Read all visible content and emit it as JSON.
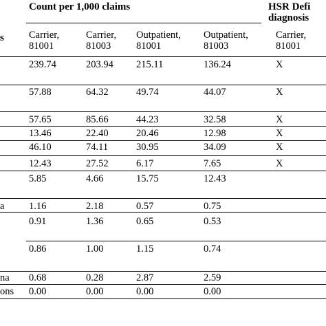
{
  "header": {
    "group_left": "Count per 1,000 claims",
    "group_right": "HSR Defi\ndiagnosis",
    "row_label_header": "s"
  },
  "columns": [
    "Carrier,\n81001",
    "Carrier,\n81003",
    "Outpatient,\n81001",
    "Outpatient,\n81003",
    "Carrier,\n81001"
  ],
  "rows": [
    {
      "label": "",
      "values": [
        "239.74",
        "203.94",
        "215.11",
        "136.24",
        "X"
      ]
    },
    {
      "label": "",
      "values": [
        "57.88",
        "64.32",
        "49.74",
        "44.07",
        "X"
      ]
    },
    {
      "label": "",
      "values": [
        "57.65",
        "85.66",
        "44.23",
        "32.58",
        "X"
      ]
    },
    {
      "label": "",
      "values": [
        "13.46",
        "22.40",
        "20.46",
        "12.98",
        "X"
      ]
    },
    {
      "label": "",
      "values": [
        "46.10",
        "74.11",
        "30.95",
        "34.09",
        "X"
      ]
    },
    {
      "label": "",
      "values": [
        "12.43",
        "27.52",
        "6.17",
        "7.65",
        "X"
      ]
    },
    {
      "label": "",
      "values": [
        "5.85",
        "4.66",
        "15.75",
        "12.43",
        ""
      ]
    },
    {
      "label": "a",
      "values": [
        "1.16",
        "2.18",
        "0.57",
        "0.75",
        ""
      ]
    },
    {
      "label": "",
      "values": [
        "0.91",
        "1.36",
        "0.65",
        "0.53",
        ""
      ]
    },
    {
      "label": "",
      "values": [
        "0.86",
        "1.00",
        "1.15",
        "0.74",
        ""
      ]
    },
    {
      "label": "na",
      "values": [
        "0.68",
        "0.28",
        "2.87",
        "2.59",
        ""
      ]
    },
    {
      "label": "ons",
      "values": [
        "0.00",
        "0.00",
        "0.00",
        "0.00",
        ""
      ]
    }
  ]
}
